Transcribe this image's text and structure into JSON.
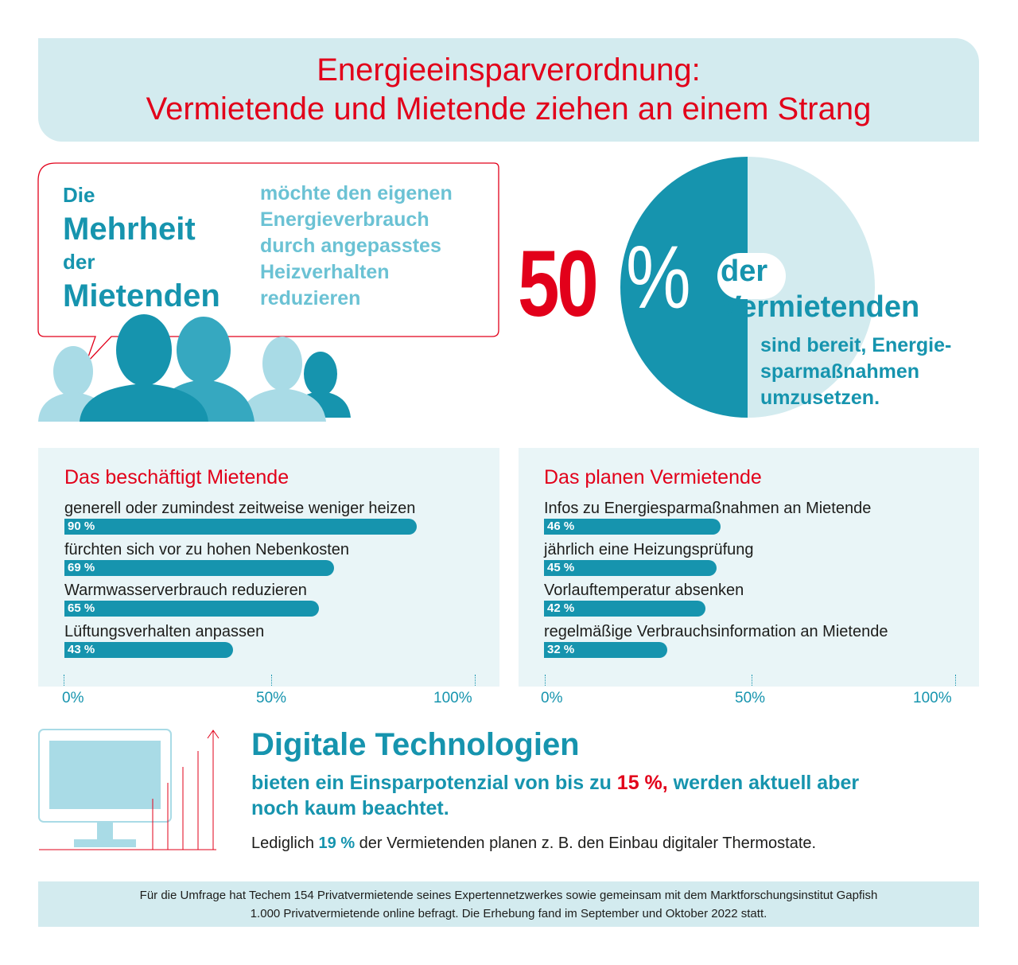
{
  "header": {
    "title_line1": "Energieeinsparverordnung:",
    "title_line2": "Vermietende und Mietende ziehen an einem Strang"
  },
  "majority": {
    "w1": "Die",
    "w2": "Mehrheit",
    "w3": "der",
    "w4": "Mietenden",
    "desc_lines": [
      "möchte den eigenen",
      "Energieverbrauch",
      "durch angepasstes",
      "Heizverhalten",
      "reduzieren"
    ]
  },
  "landlords": {
    "percent_number": "50",
    "percent_sign": "%",
    "w1": "der",
    "w2": "Vermietenden",
    "desc_lines": [
      "sind bereit, Energie-",
      "sparmaßnahmen",
      "umzusetzen."
    ]
  },
  "chart_data": [
    {
      "type": "bar",
      "title": "Das beschäftigt Mietende",
      "categories": [
        "generell oder zumindest zeitweise weniger heizen",
        "fürchten sich vor zu hohen Nebenkosten",
        "Warmwasserverbrauch reduzieren",
        "Lüftungsverhalten anpassen"
      ],
      "values": [
        90,
        69,
        65,
        43
      ],
      "value_labels": [
        "90 %",
        "69 %",
        "65 %",
        "43 %"
      ],
      "xlim": [
        0,
        100
      ],
      "ticks": [
        "0%",
        "50%",
        "100%"
      ]
    },
    {
      "type": "bar",
      "title": "Das planen Vermietende",
      "categories": [
        "Infos zu Energiesparmaßnahmen an Mietende",
        "jährlich eine Heizungsprüfung",
        "Vorlauftemperatur absenken",
        "regelmäßige Verbrauchsinformation an Mietende"
      ],
      "values": [
        46,
        45,
        42,
        32
      ],
      "value_labels": [
        "46 %",
        "45 %",
        "42 %",
        "32 %"
      ],
      "xlim": [
        0,
        100
      ],
      "ticks": [
        "0%",
        "50%",
        "100%"
      ]
    }
  ],
  "digital": {
    "title": "Digitale Technologien",
    "sub_line1_a": "bieten ein Einsparpotenzial von bis zu ",
    "sub_line1_red": "15 %,",
    "sub_line1_b": " werden aktuell aber",
    "sub_line2": "noch kaum beachtet.",
    "note_a": "Lediglich ",
    "note_pct": "19 %",
    "note_b": " der Vermietenden planen z. B. den Einbau digitaler Thermostate."
  },
  "footer": {
    "line1": "Für die Umfrage hat Techem 154 Privatvermietende seines Expertennetzwerkes sowie gemeinsam mit dem Marktforschungsinstitut Gapfish",
    "line2": "1.000 Privatvermietende online befragt. Die Erhebung fand im September und Oktober 2022 statt."
  },
  "colors": {
    "accent_red": "#e2001a",
    "teal": "#1694ae",
    "light_teal": "#d3ebef",
    "panel_bg": "#e9f5f7"
  }
}
